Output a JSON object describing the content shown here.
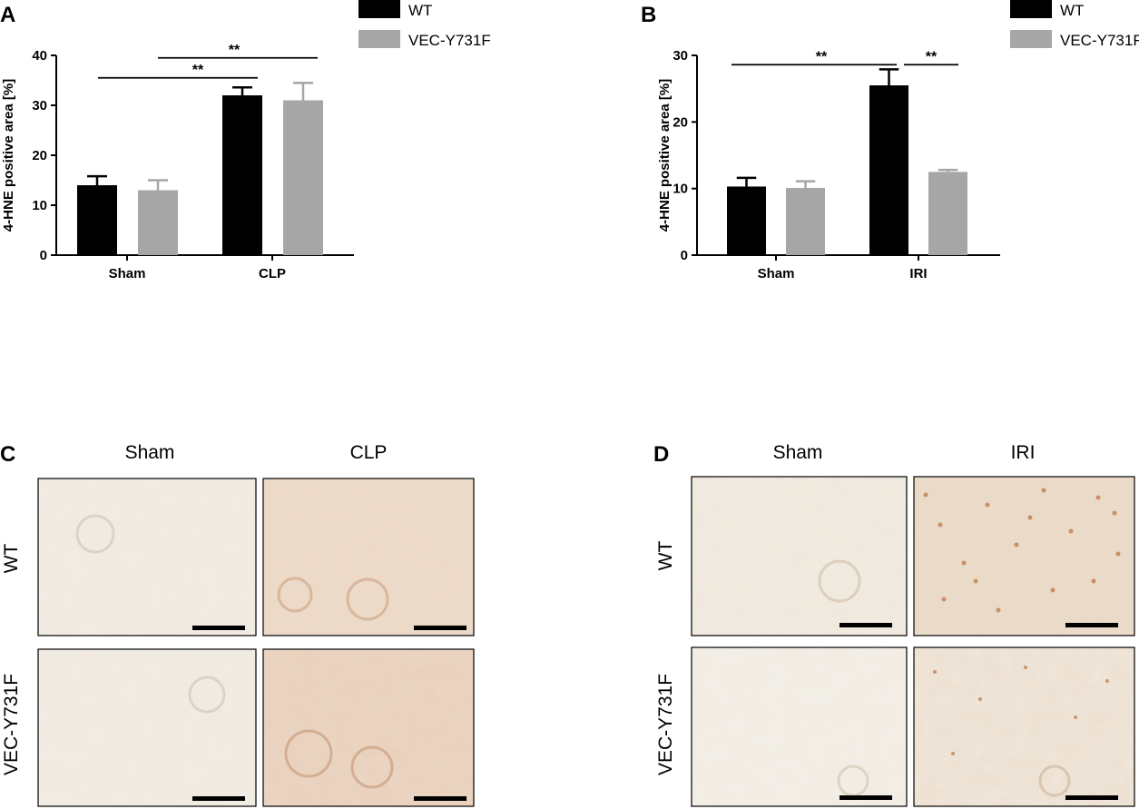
{
  "colors": {
    "wt": "#000000",
    "vec": "#a6a6a6",
    "tissue_light": "#efe9de",
    "tissue_stain": "#e6cdb5",
    "tissue_dot": "#c9966f",
    "scalebar": "#000000"
  },
  "legend": {
    "entries": [
      "WT",
      "VEC-Y731F"
    ]
  },
  "chart_data": [
    {
      "panel": "A",
      "type": "bar",
      "ylabel": "4-HNE positive area [%]",
      "ylim": [
        0,
        40
      ],
      "yticks": [
        0,
        10,
        20,
        30,
        40
      ],
      "categories": [
        "Sham",
        "CLP"
      ],
      "series": [
        {
          "name": "WT",
          "values": [
            14,
            32
          ],
          "errors": [
            1.8,
            1.6
          ]
        },
        {
          "name": "VEC-Y731F",
          "values": [
            13,
            31
          ],
          "errors": [
            2.0,
            3.5
          ]
        }
      ],
      "legend_position": "top-right",
      "annotations": [
        {
          "text": "**",
          "from": "Sham",
          "to": "CLP / WT",
          "level": 35.5
        },
        {
          "text": "**",
          "from": "Sham / VEC-Y731F",
          "to": "CLP / VEC-Y731F",
          "level": 39.5
        }
      ]
    },
    {
      "panel": "B",
      "type": "bar",
      "ylabel": "4-HNE positive area [%]",
      "ylim": [
        0,
        30
      ],
      "yticks": [
        0,
        10,
        20,
        30
      ],
      "categories": [
        "Sham",
        "IRI"
      ],
      "series": [
        {
          "name": "WT",
          "values": [
            10.3,
            25.5
          ],
          "errors": [
            1.3,
            2.4
          ]
        },
        {
          "name": "VEC-Y731F",
          "values": [
            10.1,
            12.5
          ],
          "errors": [
            1.0,
            0.3
          ]
        }
      ],
      "legend_position": "top-right",
      "annotations": [
        {
          "text": "**",
          "from": "Sham",
          "to": "IRI / WT",
          "level": 28.6
        },
        {
          "text": "**",
          "from": "IRI / WT",
          "to": "IRI / VEC-Y731F",
          "level": 28.6
        }
      ]
    }
  ],
  "micrographs": [
    {
      "panel": "C",
      "columns": [
        "Sham",
        "CLP"
      ],
      "rows": [
        "WT",
        "VEC-Y731F"
      ]
    },
    {
      "panel": "D",
      "columns": [
        "Sham",
        "IRI"
      ],
      "rows": [
        "WT",
        "VEC-Y731F"
      ]
    }
  ]
}
